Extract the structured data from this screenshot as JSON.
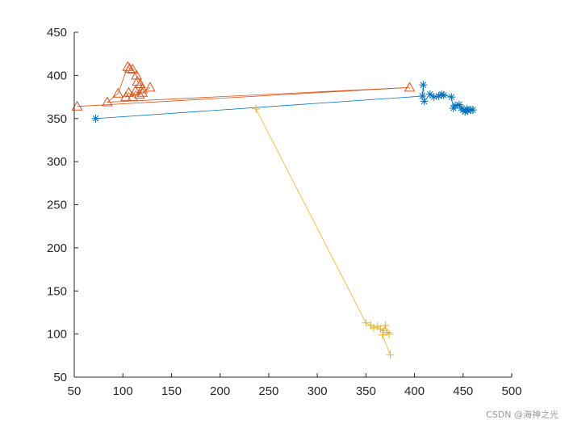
{
  "chart_data": {
    "type": "line",
    "title": "",
    "xlabel": "",
    "ylabel": "",
    "xlim": [
      50,
      500
    ],
    "ylim": [
      50,
      450
    ],
    "xticks": [
      50,
      100,
      150,
      200,
      250,
      300,
      350,
      400,
      450,
      500
    ],
    "yticks": [
      50,
      100,
      150,
      200,
      250,
      300,
      350,
      400,
      450
    ],
    "grid": false,
    "legend": "none",
    "series": [
      {
        "marker": "asterisk",
        "color": "#0072BD",
        "points": [
          [
            72,
            350
          ],
          [
            408,
            376
          ],
          [
            409,
            389
          ],
          [
            410,
            370
          ],
          [
            416,
            378
          ],
          [
            420,
            375
          ],
          [
            425,
            376
          ],
          [
            428,
            378
          ],
          [
            430,
            377
          ],
          [
            438,
            375
          ],
          [
            440,
            362
          ],
          [
            442,
            365
          ],
          [
            446,
            366
          ],
          [
            448,
            362
          ],
          [
            450,
            360
          ],
          [
            452,
            358
          ],
          [
            455,
            359
          ],
          [
            458,
            360
          ],
          [
            454,
            361
          ],
          [
            460,
            360
          ]
        ]
      },
      {
        "marker": "triangle",
        "color": "#D95319",
        "points": [
          [
            53,
            364
          ],
          [
            395,
            386
          ],
          [
            84,
            369
          ],
          [
            95,
            379
          ],
          [
            105,
            410
          ],
          [
            107,
            408
          ],
          [
            110,
            407
          ],
          [
            114,
            400
          ],
          [
            115,
            393
          ],
          [
            118,
            390
          ],
          [
            120,
            384
          ],
          [
            117,
            378
          ],
          [
            113,
            382
          ],
          [
            110,
            375
          ],
          [
            106,
            380
          ],
          [
            103,
            375
          ],
          [
            120,
            380
          ],
          [
            128,
            386
          ]
        ]
      },
      {
        "marker": "plus",
        "color": "#EDB120",
        "points": [
          [
            237,
            361
          ],
          [
            350,
            113
          ],
          [
            355,
            110
          ],
          [
            358,
            107
          ],
          [
            362,
            109
          ],
          [
            365,
            106
          ],
          [
            368,
            104
          ],
          [
            370,
            110
          ],
          [
            372,
            102
          ],
          [
            374,
            100
          ],
          [
            367,
            99
          ],
          [
            375,
            76
          ]
        ]
      }
    ]
  },
  "watermark": "CSDN @海神之光"
}
